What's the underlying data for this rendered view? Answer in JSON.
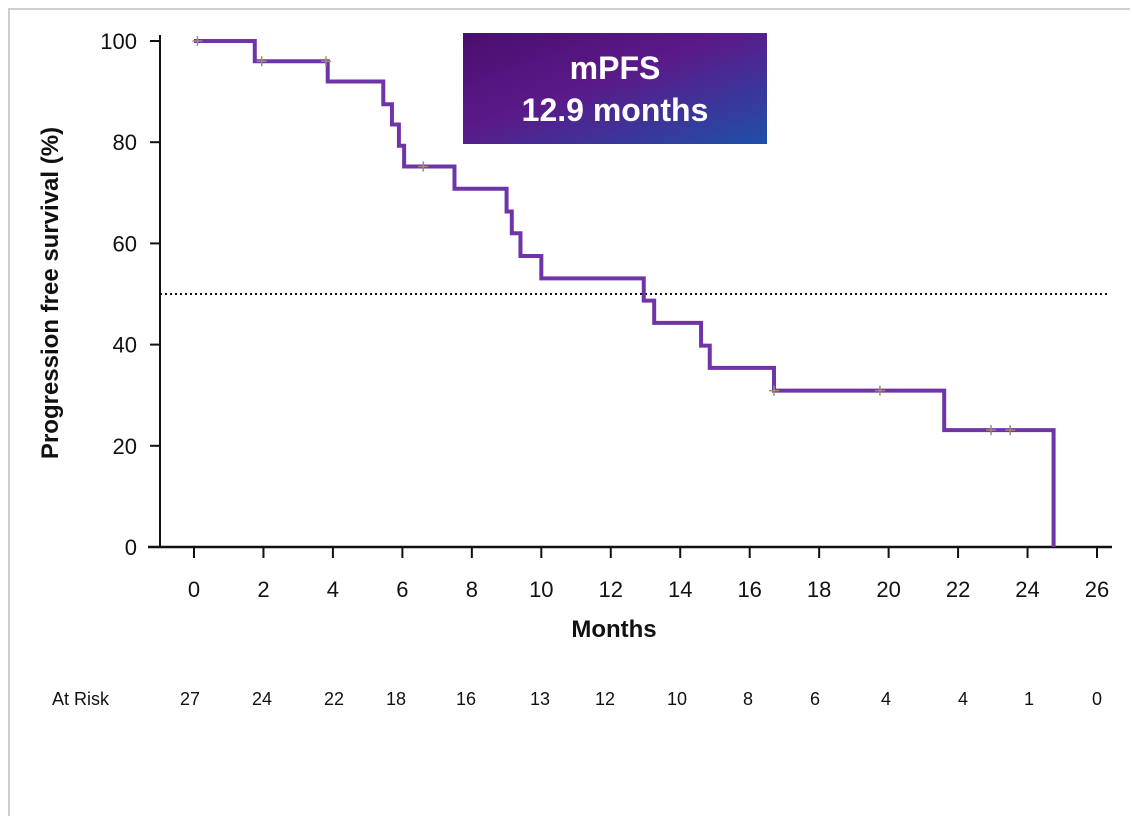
{
  "chart_data": {
    "type": "line",
    "subtype": "kaplan-meier-step",
    "xlabel": "Months",
    "ylabel": "Progression free survival (%)",
    "xlim": [
      0,
      26
    ],
    "ylim": [
      0,
      100
    ],
    "x_ticks": [
      0,
      2,
      4,
      6,
      8,
      10,
      12,
      14,
      16,
      18,
      20,
      22,
      24,
      26
    ],
    "y_ticks": [
      0,
      20,
      40,
      60,
      80,
      100
    ],
    "grid": false,
    "series": [
      {
        "color": "#6f35a8",
        "steps": [
          [
            0,
            100
          ],
          [
            1.75,
            96
          ],
          [
            3.85,
            92
          ],
          [
            5.45,
            87.5
          ],
          [
            5.7,
            83.5
          ],
          [
            5.9,
            79.3
          ],
          [
            6.05,
            75.2
          ],
          [
            7.5,
            70.8
          ],
          [
            9.0,
            66.3
          ],
          [
            9.15,
            62
          ],
          [
            9.4,
            57.5
          ],
          [
            10.0,
            53.1
          ],
          [
            12.95,
            48.7
          ],
          [
            13.25,
            44.3
          ],
          [
            14.6,
            39.8
          ],
          [
            14.85,
            35.4
          ],
          [
            16.7,
            30.9
          ],
          [
            21.6,
            23.1
          ],
          [
            24.75,
            0
          ]
        ],
        "censored": [
          [
            0.1,
            100
          ],
          [
            1.95,
            96
          ],
          [
            3.8,
            96
          ],
          [
            6.6,
            75.2
          ],
          [
            16.7,
            30.9
          ],
          [
            19.75,
            30.9
          ],
          [
            22.95,
            23.1
          ],
          [
            23.5,
            23.1
          ]
        ],
        "censor_color": "#a08a78"
      }
    ],
    "reference_line": {
      "y": 50,
      "style": "dotted"
    },
    "annotation": {
      "line1": "mPFS",
      "line2": "12.9 months",
      "gradient": [
        "#4a0e6e",
        "#5a1a8a",
        "#1f4fa8"
      ]
    },
    "at_risk": {
      "label": "At Risk",
      "values": [
        "27",
        "24",
        "22",
        "18",
        "16",
        "13",
        "12",
        "10",
        "8",
        "6",
        "4",
        "4",
        "1",
        "0"
      ]
    }
  }
}
